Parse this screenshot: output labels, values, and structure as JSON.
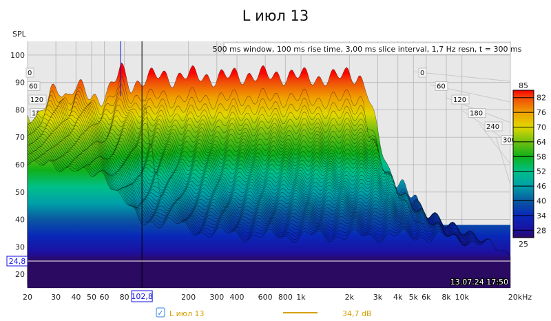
{
  "chart_data": {
    "type": "waterfall",
    "title": "L июл 13",
    "ylabel": "SPL",
    "xlabel_unit": "kHz",
    "info": "500 ms window, 100 ms rise time, 3,00 ms slice interval, 1,7 Hz resn, t = 300 ms",
    "ylim": [
      15,
      105
    ],
    "xlim": [
      20,
      20000
    ],
    "y_ticks": [
      "100",
      "90",
      "80",
      "70",
      "60",
      "50",
      "40",
      "30",
      "20"
    ],
    "y_tick_values": [
      100,
      90,
      80,
      70,
      60,
      50,
      40,
      30,
      20
    ],
    "x_ticks": [
      "20",
      "30",
      "40",
      "50",
      "60",
      "80",
      "200",
      "300",
      "400",
      "600",
      "800",
      "1k",
      "2k",
      "3k",
      "4k",
      "5k",
      "6k",
      "8k",
      "10k",
      "20kHz"
    ],
    "x_tick_values": [
      20,
      30,
      40,
      50,
      60,
      80,
      200,
      300,
      400,
      600,
      800,
      1000,
      2000,
      3000,
      4000,
      5000,
      6000,
      8000,
      10000,
      20000
    ],
    "time_ticks_ms": [
      "0",
      "60",
      "120",
      "180",
      "240",
      "300"
    ],
    "time_range_ms": [
      0,
      300
    ],
    "response_t0": {
      "freq_hz": [
        20,
        25,
        30,
        35,
        40,
        45,
        50,
        60,
        70,
        80,
        100,
        120,
        150,
        200,
        250,
        300,
        400,
        500,
        700,
        1000,
        2000,
        3000,
        4000,
        5000,
        6000,
        7000,
        8000,
        10000,
        20000
      ],
      "spl_db": [
        70,
        68,
        78,
        80,
        76,
        80,
        79,
        76,
        76,
        78,
        86,
        80,
        83,
        84,
        83,
        84,
        84,
        83,
        84,
        84,
        84,
        83,
        83,
        85,
        84,
        78,
        66,
        50,
        32
      ]
    },
    "response_t300": {
      "freq_hz": [
        20,
        30,
        40,
        50,
        60,
        80,
        100,
        150,
        200,
        500,
        1000,
        5000,
        10000,
        20000
      ],
      "spl_db": [
        62,
        58,
        60,
        55,
        56,
        48,
        38,
        40,
        36,
        34,
        34,
        34,
        33,
        28
      ]
    },
    "colorbar": {
      "min_label": "25",
      "max_label": "85",
      "labels": [
        "82",
        "76",
        "70",
        "64",
        "58",
        "52",
        "46",
        "40",
        "34",
        "28"
      ],
      "stops_db": [
        25,
        28,
        34,
        40,
        46,
        52,
        58,
        64,
        70,
        76,
        82,
        85
      ],
      "stops_color": [
        "#2b0a62",
        "#1c10a0",
        "#0828b8",
        "#0a58a0",
        "#00a0a8",
        "#00c088",
        "#10b018",
        "#70c010",
        "#e0d800",
        "#f0a000",
        "#f04808",
        "#ff0000"
      ]
    },
    "cursor": {
      "freq_label": "102,8",
      "freq_hz": 102.8,
      "spl_label": "24,8",
      "spl_db": 24.8
    },
    "marker_freq_hz": 75.7,
    "timestamp": "13.07.24 17:50"
  },
  "legend": {
    "checked": true,
    "name": "L июл 13",
    "value": "34,7 dB",
    "color": "#d4a000"
  }
}
